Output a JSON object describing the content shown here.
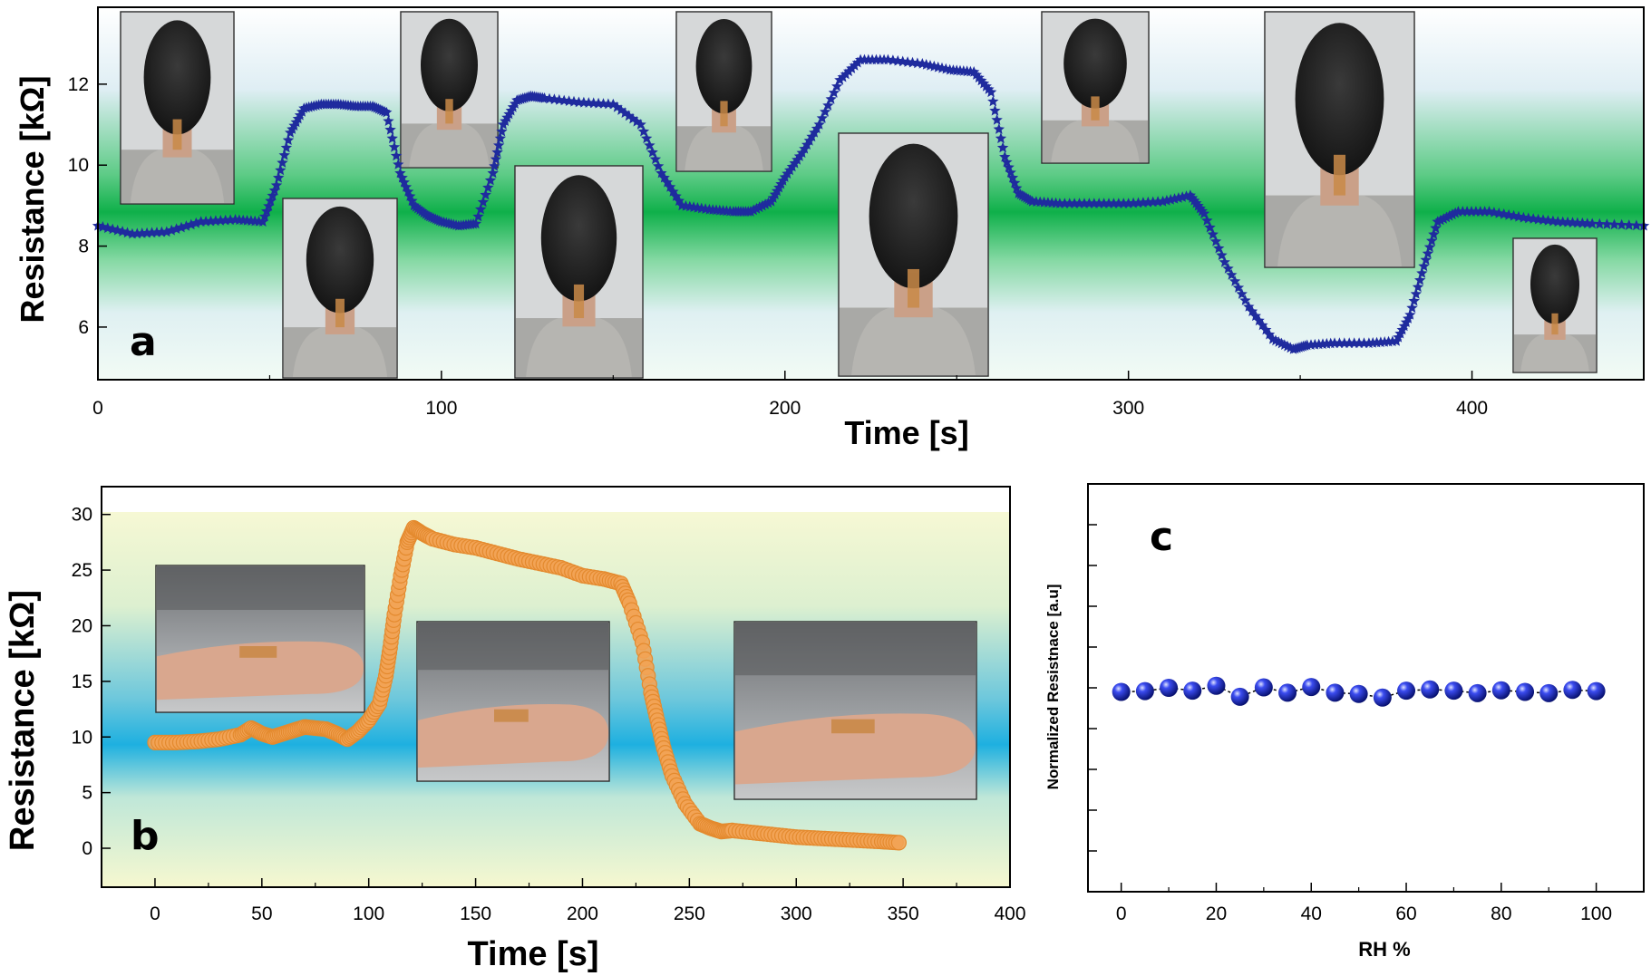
{
  "chart_data": [
    {
      "panel_label": "a",
      "type": "scatter",
      "marker": "star",
      "marker_color": "#1f2b9e",
      "background": "green-gradient",
      "xlabel": "Time [s]",
      "ylabel": "Resistance [kΩ]",
      "xlim": [
        0,
        450
      ],
      "ylim": [
        4.7,
        13.9
      ],
      "xticks": [
        0,
        100,
        200,
        300,
        400
      ],
      "yticks": [
        6,
        8,
        10,
        12
      ],
      "x": [
        0,
        10,
        20,
        30,
        40,
        48,
        52,
        56,
        60,
        65,
        70,
        75,
        80,
        84,
        88,
        92,
        96,
        100,
        105,
        110,
        115,
        118,
        122,
        126,
        130,
        140,
        150,
        158,
        164,
        170,
        178,
        185,
        190,
        196,
        200,
        205,
        210,
        216,
        222,
        230,
        240,
        248,
        255,
        260,
        264,
        268,
        272,
        280,
        290,
        300,
        310,
        318,
        322,
        328,
        335,
        342,
        348,
        352,
        360,
        370,
        378,
        382,
        386,
        390,
        396,
        405,
        415,
        425,
        435,
        450
      ],
      "y": [
        8.5,
        8.3,
        8.35,
        8.6,
        8.65,
        8.6,
        9.5,
        10.8,
        11.4,
        11.5,
        11.5,
        11.45,
        11.45,
        11.3,
        9.8,
        9.0,
        8.75,
        8.6,
        8.5,
        8.55,
        9.8,
        11.0,
        11.6,
        11.7,
        11.65,
        11.55,
        11.5,
        11.0,
        9.8,
        9.0,
        8.9,
        8.85,
        8.85,
        9.1,
        9.7,
        10.3,
        11.0,
        12.1,
        12.6,
        12.6,
        12.5,
        12.35,
        12.3,
        11.8,
        10.2,
        9.3,
        9.1,
        9.05,
        9.05,
        9.05,
        9.1,
        9.25,
        8.8,
        7.6,
        6.5,
        5.7,
        5.45,
        5.55,
        5.6,
        5.6,
        5.65,
        6.3,
        7.5,
        8.6,
        8.85,
        8.85,
        8.7,
        8.6,
        8.55,
        8.5
      ]
    },
    {
      "panel_label": "b",
      "type": "scatter",
      "marker": "circle",
      "marker_color": "#f2a355",
      "background": "yellow-cyan-gradient",
      "xlabel": "Time [s]",
      "ylabel": "Resistance [kΩ]",
      "xlim": [
        -25,
        400
      ],
      "ylim": [
        -3.5,
        32.5
      ],
      "xticks": [
        0,
        50,
        100,
        150,
        200,
        250,
        300,
        350,
        400
      ],
      "yticks": [
        0,
        5,
        10,
        15,
        20,
        25,
        30
      ],
      "x": [
        0,
        10,
        20,
        30,
        40,
        45,
        50,
        55,
        60,
        65,
        70,
        75,
        80,
        85,
        90,
        95,
        100,
        105,
        108,
        110,
        112,
        115,
        118,
        121,
        125,
        130,
        140,
        150,
        160,
        170,
        180,
        190,
        200,
        210,
        218,
        222,
        228,
        232,
        235,
        238,
        242,
        248,
        255,
        260,
        265,
        270,
        280,
        290,
        300,
        310,
        320,
        330,
        340,
        348
      ],
      "y": [
        9.5,
        9.5,
        9.6,
        9.8,
        10.2,
        10.8,
        10.3,
        10.0,
        10.3,
        10.6,
        10.9,
        10.8,
        10.7,
        10.3,
        9.8,
        10.5,
        11.5,
        13.0,
        15.5,
        18.0,
        21.0,
        24.5,
        27.5,
        28.8,
        28.3,
        27.8,
        27.3,
        27.0,
        26.5,
        26.0,
        25.6,
        25.2,
        24.5,
        24.2,
        23.8,
        22.0,
        18.5,
        14.0,
        11.5,
        9.0,
        6.5,
        4.0,
        2.2,
        1.8,
        1.5,
        1.6,
        1.4,
        1.2,
        1.0,
        0.9,
        0.8,
        0.7,
        0.6,
        0.5
      ]
    },
    {
      "panel_label": "c",
      "type": "scatter",
      "marker": "sphere",
      "marker_color": "#1e2bd6",
      "xlabel": "RH %",
      "ylabel": "Normalized Resistnace [a.u]",
      "xlim": [
        -7,
        110
      ],
      "ylim": [
        0,
        10
      ],
      "xticks": [
        0,
        20,
        40,
        60,
        80,
        100
      ],
      "x": [
        0,
        5,
        10,
        15,
        20,
        25,
        30,
        35,
        40,
        45,
        50,
        55,
        60,
        65,
        70,
        75,
        80,
        85,
        90,
        95,
        100
      ],
      "y": [
        4.9,
        4.92,
        5.0,
        4.93,
        5.05,
        4.78,
        5.01,
        4.88,
        5.02,
        4.88,
        4.85,
        4.76,
        4.93,
        4.96,
        4.93,
        4.87,
        4.94,
        4.9,
        4.87,
        4.95,
        4.92
      ]
    }
  ],
  "photos": {
    "a": [
      "neck-front-1",
      "neck-tilt-right",
      "neck-front-2",
      "neck-turn-left",
      "neck-front-3",
      "neck-bend-down",
      "neck-front-4",
      "neck-bend-back",
      "neck-front-5"
    ],
    "b": [
      "wrist-flex",
      "knee-bend",
      "wrist-fist"
    ]
  }
}
